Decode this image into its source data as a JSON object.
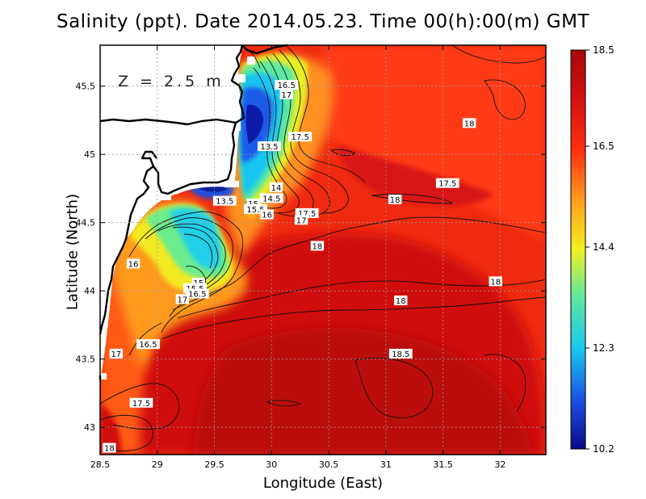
{
  "title": "Salinity (ppt). Date 2014.05.23. Time 00(h):00(m) GMT",
  "depth_label": "Z = 2.5 m",
  "chart_data": {
    "type": "heatmap",
    "title": "Salinity (ppt). Date 2014.05.23. Time 00(h):00(m) GMT",
    "xlabel": "Longitude (East)",
    "ylabel": "Latitude (North)",
    "xlim": [
      28.5,
      32.4
    ],
    "ylim": [
      42.8,
      45.8
    ],
    "x_ticks": [
      28.5,
      29,
      29.5,
      30,
      30.5,
      31,
      31.5,
      32
    ],
    "x_tick_labels": [
      "28.5",
      "29",
      "29.5",
      "30",
      "30.5",
      "31",
      "31.5",
      "32"
    ],
    "y_ticks": [
      43,
      43.5,
      44,
      44.5,
      45,
      45.5
    ],
    "y_tick_labels": [
      "43",
      "43.5",
      "44",
      "44.5",
      "45",
      "45.5"
    ],
    "grid": true,
    "colorbar": {
      "min": 10.2,
      "max": 18.5,
      "tick_values": [
        18.5,
        16.5,
        14.4,
        12.3,
        10.2
      ],
      "tick_labels": [
        "18.5",
        "16.5",
        "14.4",
        "12.3",
        "10.2"
      ],
      "colors": [
        "#0b0a8a",
        "#1a4fe0",
        "#19c6f0",
        "#5ee8a0",
        "#f0f020",
        "#ffa020",
        "#ff3010",
        "#d41010",
        "#a40a0a"
      ]
    },
    "contour_labels": [
      {
        "lon": 30.13,
        "lat": 45.51,
        "text": "16.5"
      },
      {
        "lon": 30.13,
        "lat": 45.44,
        "text": "17"
      },
      {
        "lon": 30.25,
        "lat": 45.13,
        "text": "17.5"
      },
      {
        "lon": 31.73,
        "lat": 45.23,
        "text": "18"
      },
      {
        "lon": 29.98,
        "lat": 45.06,
        "text": "13.5"
      },
      {
        "lon": 31.54,
        "lat": 44.79,
        "text": "17.5"
      },
      {
        "lon": 30.04,
        "lat": 44.76,
        "text": "14"
      },
      {
        "lon": 30.0,
        "lat": 44.68,
        "text": "14.5"
      },
      {
        "lon": 29.59,
        "lat": 44.66,
        "text": "13.5"
      },
      {
        "lon": 29.84,
        "lat": 44.64,
        "text": "15"
      },
      {
        "lon": 29.86,
        "lat": 44.6,
        "text": "15.5"
      },
      {
        "lon": 29.96,
        "lat": 44.56,
        "text": "16"
      },
      {
        "lon": 30.31,
        "lat": 44.57,
        "text": "17.5"
      },
      {
        "lon": 30.26,
        "lat": 44.52,
        "text": "17"
      },
      {
        "lon": 31.08,
        "lat": 44.67,
        "text": "18"
      },
      {
        "lon": 30.4,
        "lat": 44.33,
        "text": "18"
      },
      {
        "lon": 28.79,
        "lat": 44.2,
        "text": "16"
      },
      {
        "lon": 29.36,
        "lat": 44.06,
        "text": "15"
      },
      {
        "lon": 29.33,
        "lat": 44.02,
        "text": "15.5"
      },
      {
        "lon": 29.35,
        "lat": 43.98,
        "text": "16.5"
      },
      {
        "lon": 29.22,
        "lat": 43.94,
        "text": "17"
      },
      {
        "lon": 31.96,
        "lat": 44.07,
        "text": "18"
      },
      {
        "lon": 31.13,
        "lat": 43.93,
        "text": "18"
      },
      {
        "lon": 28.92,
        "lat": 43.61,
        "text": "16.5"
      },
      {
        "lon": 28.64,
        "lat": 43.54,
        "text": "17"
      },
      {
        "lon": 31.13,
        "lat": 43.54,
        "text": "18.5"
      },
      {
        "lon": 28.86,
        "lat": 43.18,
        "text": "17.5"
      },
      {
        "lon": 28.58,
        "lat": 42.85,
        "text": "18"
      }
    ]
  }
}
